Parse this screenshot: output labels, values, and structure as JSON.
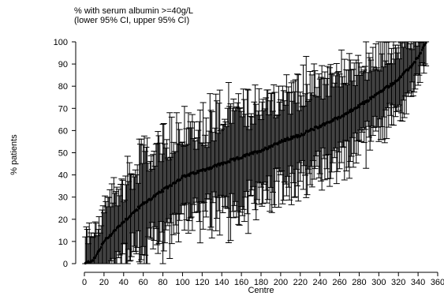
{
  "chart_data": {
    "type": "scatter",
    "title_lines": [
      "% with serum albumin >=40g/L",
      "(lower 95% CI, upper 95% CI)"
    ],
    "xlabel": "Centre",
    "ylabel": "% patients",
    "xlim": [
      0,
      360
    ],
    "ylim": [
      0,
      100
    ],
    "xticks": [
      0,
      20,
      40,
      60,
      80,
      100,
      120,
      140,
      160,
      180,
      200,
      220,
      240,
      260,
      280,
      300,
      320,
      340,
      360
    ],
    "yticks": [
      0,
      10,
      20,
      30,
      40,
      50,
      60,
      70,
      80,
      90,
      100
    ],
    "n_centres": 348,
    "estimate_profile": [
      [
        1,
        0
      ],
      [
        10,
        2
      ],
      [
        20,
        10
      ],
      [
        40,
        19
      ],
      [
        60,
        27
      ],
      [
        80,
        33
      ],
      [
        100,
        39
      ],
      [
        120,
        42
      ],
      [
        140,
        45
      ],
      [
        160,
        48
      ],
      [
        180,
        51
      ],
      [
        200,
        55
      ],
      [
        220,
        58
      ],
      [
        240,
        62
      ],
      [
        260,
        66
      ],
      [
        280,
        71
      ],
      [
        300,
        77
      ],
      [
        320,
        83
      ],
      [
        335,
        90
      ],
      [
        343,
        95
      ],
      [
        348,
        100
      ]
    ],
    "ci_halfwidth_profile": [
      [
        1,
        12
      ],
      [
        20,
        14
      ],
      [
        60,
        20
      ],
      [
        150,
        22
      ],
      [
        250,
        20
      ],
      [
        320,
        16
      ],
      [
        348,
        8
      ]
    ],
    "grid": false,
    "legend": "none"
  }
}
